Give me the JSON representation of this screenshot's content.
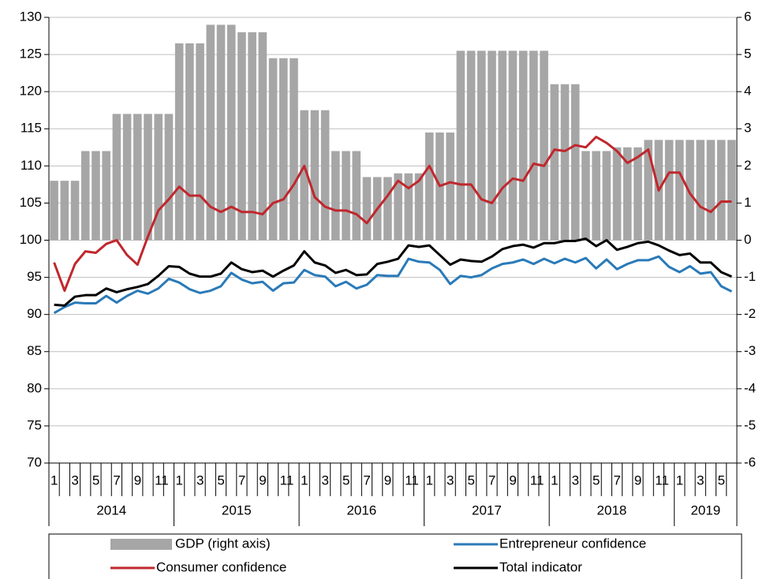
{
  "chart_data": {
    "type": "combo",
    "categories": [
      "1",
      null,
      "3",
      null,
      "5",
      null,
      "7",
      null,
      "9",
      null,
      "11",
      null,
      "1",
      null,
      "3",
      null,
      "5",
      null,
      "7",
      null,
      "9",
      null,
      "11",
      null,
      "1",
      null,
      "3",
      null,
      "5",
      null,
      "7",
      null,
      "9",
      null,
      "11",
      null,
      "1",
      null,
      "3",
      null,
      "5",
      null,
      "7",
      null,
      "9",
      null,
      "11",
      null,
      "1",
      null,
      "3",
      null,
      "5",
      null,
      "7",
      null,
      "9",
      null,
      "11",
      null,
      "1",
      null,
      "3",
      null,
      "5",
      null
    ],
    "years": [
      "2014",
      "2015",
      "2016",
      "2017",
      "2018",
      "2019"
    ],
    "ylim": [
      70,
      130
    ],
    "yticks": [
      70,
      75,
      80,
      85,
      90,
      95,
      100,
      105,
      110,
      115,
      120,
      125,
      130
    ],
    "y2lim": [
      -6,
      6
    ],
    "y2ticks": [
      -6,
      -5,
      -4,
      -3,
      -2,
      -1,
      0,
      1,
      2,
      3,
      4,
      5,
      6
    ],
    "grid": true,
    "legend": "bottom",
    "series": [
      {
        "name": "GDP (right axis)",
        "type": "bar",
        "axis": "y2",
        "color": "#a6a6a6",
        "values": [
          1.6,
          1.6,
          1.6,
          2.4,
          2.4,
          2.4,
          3.4,
          3.4,
          3.4,
          3.4,
          3.4,
          3.4,
          5.3,
          5.3,
          5.3,
          5.8,
          5.8,
          5.8,
          5.6,
          5.6,
          5.6,
          4.9,
          4.9,
          4.9,
          3.5,
          3.5,
          3.5,
          2.4,
          2.4,
          2.4,
          1.7,
          1.7,
          1.7,
          1.8,
          1.8,
          1.8,
          2.9,
          2.9,
          2.9,
          5.1,
          5.1,
          5.1,
          5.1,
          5.1,
          5.1,
          5.1,
          5.1,
          5.1,
          4.2,
          4.2,
          4.2,
          2.4,
          2.4,
          2.4,
          2.5,
          2.5,
          2.5,
          2.7,
          2.7,
          2.7,
          2.7,
          2.7,
          2.7,
          2.7,
          2.7,
          2.7
        ]
      },
      {
        "name": "Entrepreneur confidence",
        "type": "line",
        "color": "#2a7ab8",
        "values": [
          90.2,
          91,
          91.6,
          91.5,
          91.5,
          92.5,
          91.6,
          92.5,
          93.2,
          92.8,
          93.5,
          94.8,
          94.3,
          93.4,
          92.9,
          93.2,
          93.8,
          95.6,
          94.7,
          94.2,
          94.4,
          93.2,
          94.2,
          94.3,
          96,
          95.3,
          95.1,
          93.8,
          94.4,
          93.5,
          94,
          95.3,
          95.2,
          95.2,
          97.5,
          97.1,
          97,
          96,
          94.1,
          95.2,
          95,
          95.3,
          96.2,
          96.8,
          97,
          97.4,
          96.8,
          97.5,
          96.9,
          97.5,
          97,
          97.6,
          96.2,
          97.4,
          96.1,
          96.8,
          97.3,
          97.3,
          97.8,
          96.4,
          95.7,
          96.5,
          95.5,
          95.7,
          93.8,
          93.1
        ]
      },
      {
        "name": "Consumer confidence",
        "type": "line",
        "color": "#c0272d",
        "values": [
          97,
          93.2,
          96.8,
          98.5,
          98.3,
          99.5,
          100,
          98,
          96.7,
          100.5,
          104,
          105.5,
          107.2,
          106,
          106,
          104.5,
          103.8,
          104.5,
          103.8,
          103.8,
          103.5,
          105,
          105.5,
          107.5,
          110,
          105.8,
          104.5,
          104,
          104,
          103.5,
          102.3,
          104.2,
          106,
          108,
          107,
          108,
          110,
          107.3,
          107.8,
          107.5,
          107.5,
          105.5,
          105,
          107,
          108.3,
          108,
          110.3,
          110,
          112.2,
          112,
          112.8,
          112.5,
          113.9,
          113.1,
          112,
          110.4,
          111.2,
          112.2,
          106.7,
          109.1,
          109.1,
          106.3,
          104.5,
          103.8,
          105.2,
          105.2
        ]
      },
      {
        "name": "Total indicator",
        "type": "line",
        "color": "#000000",
        "values": [
          91.3,
          91.2,
          92.4,
          92.6,
          92.6,
          93.5,
          93,
          93.4,
          93.7,
          94.1,
          95.2,
          96.5,
          96.4,
          95.5,
          95.1,
          95.1,
          95.5,
          97,
          96.1,
          95.7,
          95.9,
          95.1,
          95.9,
          96.6,
          98.5,
          97,
          96.6,
          95.6,
          96,
          95.3,
          95.4,
          96.8,
          97.1,
          97.5,
          99.3,
          99.1,
          99.3,
          98,
          96.7,
          97.4,
          97.2,
          97.1,
          97.8,
          98.8,
          99.2,
          99.4,
          99,
          99.6,
          99.6,
          99.9,
          99.9,
          100.2,
          99.2,
          100,
          98.7,
          99.1,
          99.6,
          99.8,
          99.3,
          98.6,
          98,
          98.2,
          97,
          97,
          95.7,
          95.1
        ]
      }
    ]
  }
}
